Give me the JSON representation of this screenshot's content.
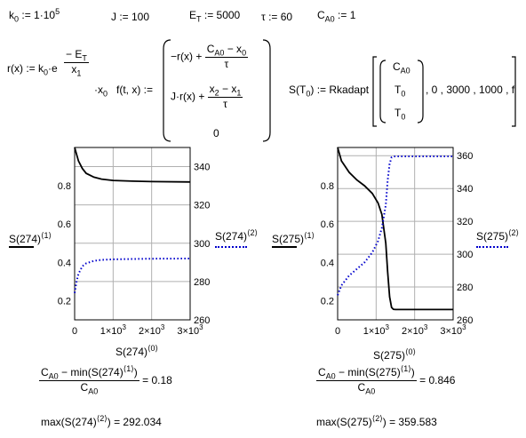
{
  "definitions": {
    "k0": "k",
    "k0_sub": "0",
    "k0_value": ":= 1·10",
    "k0_exp": "5",
    "J": "J := 100",
    "ET": "E",
    "ET_sub": "T",
    "ET_value": ":= 5000",
    "tau": "τ := 60",
    "CA0": "C",
    "CA0_sub": "A0",
    "CA0_value": ":= 1"
  },
  "rate_fn": {
    "lhs": "r(x) := k",
    "lhs_sub": "0",
    "dot_e": "·e",
    "exp_num": "− E",
    "exp_num_sub": "T",
    "exp_den": "x",
    "exp_den_sub": "1",
    "tail": "·x",
    "tail_sub": "0"
  },
  "f_fn": {
    "lhs": "f(t, x) :=",
    "row1_prefix": "−r(x) +",
    "row1_num": "C",
    "row1_num_sub": "A0",
    "row1_num_tail": " − x",
    "row1_num_tail_sub": "0",
    "row1_den": "τ",
    "row2_prefix": "J·r(x) +",
    "row2_num": "x",
    "row2_num_sub": "2",
    "row2_num_mid": " − x",
    "row2_num_mid_sub": "1",
    "row2_den": "τ",
    "row3": "0"
  },
  "s_fn": {
    "lhs": "S",
    "lhs_arg": "T",
    "lhs_arg_sub": "0",
    "assign": ":= Rkadapt",
    "vec1": "C",
    "vec1_sub": "A0",
    "vec2": "T",
    "vec2_sub": "0",
    "vec3": "T",
    "vec3_sub": "0",
    "args": ", 0 , 3000 , 1000 , f"
  },
  "charts_text": {
    "left_ylabel": "S(274)",
    "left_ylabel_sup": "⟨1⟩",
    "left_y2label": "S(274)",
    "left_y2label_sup": "⟨2⟩",
    "left_xlabel": "S(274)",
    "left_xlabel_sup": "⟨0⟩",
    "right_ylabel": "S(275)",
    "right_ylabel_sup": "⟨1⟩",
    "right_y2label": "S(275)",
    "right_y2label_sup": "⟨2⟩",
    "right_xlabel": "S(275)",
    "right_xlabel_sup": "⟨0⟩"
  },
  "results": {
    "left_conv_num_a": "C",
    "left_conv_num_a_sub": "A0",
    "left_conv_num_b": " − min",
    "left_conv_num_arg": "S(274)",
    "left_conv_num_arg_sup": "⟨1⟩",
    "left_conv_den": "C",
    "left_conv_den_sub": "A0",
    "left_conv_value": "= 0.18",
    "left_max_prefix": "max",
    "left_max_arg": "S(274)",
    "left_max_arg_sup": "⟨2⟩",
    "left_max_value": "= 292.034",
    "right_conv_num_a": "C",
    "right_conv_num_a_sub": "A0",
    "right_conv_num_b": " − min",
    "right_conv_num_arg": "S(275)",
    "right_conv_num_arg_sup": "⟨1⟩",
    "right_conv_den": "C",
    "right_conv_den_sub": "A0",
    "right_conv_value": "= 0.846",
    "right_max_prefix": "max",
    "right_max_arg": "S(275)",
    "right_max_arg_sup": "⟨2⟩",
    "right_max_value": "= 359.583"
  },
  "chart_data": [
    {
      "type": "line",
      "x_ticks": [
        "0",
        "1×10",
        "2×10",
        "3×10"
      ],
      "x_tick_exp": "3",
      "xlim": [
        0,
        3000
      ],
      "y_ticks": [
        "0.2",
        "0.4",
        "0.6",
        "0.8"
      ],
      "ylim": [
        0.1,
        1.0
      ],
      "y2_ticks": [
        "260",
        "280",
        "300",
        "320",
        "340"
      ],
      "y2lim": [
        260,
        350
      ],
      "grid": true,
      "series": [
        {
          "axis": "left",
          "style": "solid",
          "color": "#000000",
          "x": [
            0,
            100,
            200,
            300,
            500,
            700,
            1000,
            1500,
            2000,
            3000
          ],
          "y": [
            1.0,
            0.93,
            0.89,
            0.865,
            0.845,
            0.835,
            0.828,
            0.824,
            0.822,
            0.82
          ]
        },
        {
          "axis": "right",
          "style": "dotted",
          "color": "#0000cc",
          "x": [
            0,
            50,
            100,
            200,
            300,
            500,
            700,
            1000,
            1500,
            2000,
            3000
          ],
          "y": [
            274,
            280,
            284,
            288,
            289.5,
            290.8,
            291.3,
            291.6,
            291.8,
            291.9,
            292.0
          ]
        }
      ]
    },
    {
      "type": "line",
      "x_ticks": [
        "0",
        "1×10",
        "2×10",
        "3×10"
      ],
      "x_tick_exp": "3",
      "xlim": [
        0,
        3000
      ],
      "y_ticks": [
        "0.2",
        "0.4",
        "0.6",
        "0.8"
      ],
      "ylim": [
        0.1,
        1.0
      ],
      "y2_ticks": [
        "260",
        "280",
        "300",
        "320",
        "340",
        "360"
      ],
      "y2lim": [
        260,
        365
      ],
      "grid": true,
      "series": [
        {
          "axis": "left",
          "style": "solid",
          "color": "#000000",
          "x": [
            0,
            100,
            200,
            300,
            500,
            700,
            900,
            1050,
            1150,
            1250,
            1300,
            1350,
            1400,
            1450,
            1500,
            2000,
            3000
          ],
          "y": [
            1.0,
            0.93,
            0.9,
            0.87,
            0.83,
            0.8,
            0.76,
            0.71,
            0.65,
            0.5,
            0.35,
            0.22,
            0.165,
            0.155,
            0.154,
            0.154,
            0.154
          ]
        },
        {
          "axis": "right",
          "style": "dotted",
          "color": "#0000cc",
          "x": [
            0,
            100,
            300,
            500,
            700,
            900,
            1050,
            1150,
            1250,
            1300,
            1350,
            1400,
            1450,
            1500,
            2000,
            3000
          ],
          "y": [
            275,
            281,
            287,
            291,
            295,
            301,
            308,
            316,
            330,
            345,
            355,
            359,
            359.5,
            359.6,
            359.6,
            359.6
          ]
        }
      ]
    }
  ]
}
